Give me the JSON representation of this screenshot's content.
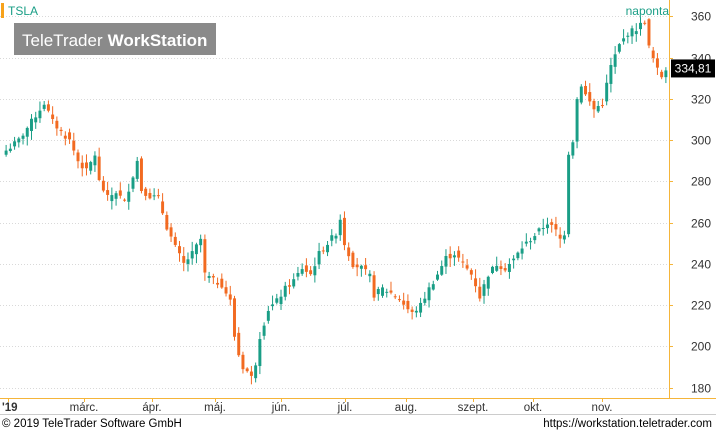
{
  "header": {
    "symbol": "TSLA",
    "interval": "naponta",
    "watermark_light": "TeleTrader",
    "watermark_bold": "WorkStation"
  },
  "footer": {
    "copyright": "© 2019 TeleTrader Software GmbH",
    "url": "https://workstation.teletrader.com"
  },
  "colors": {
    "up": "#1a9e86",
    "down": "#f26a21",
    "accent": "#f7a21b",
    "axis_line": "#f5b53a",
    "grid": "#d9d9d9",
    "last_price_bg": "#000000",
    "last_price_fg": "#ffffff"
  },
  "chart_data": {
    "type": "candlestick",
    "interval": "daily",
    "y_axis": {
      "side": "right",
      "range": [
        175,
        368
      ],
      "ticks": [
        180,
        200,
        220,
        240,
        260,
        280,
        300,
        320,
        340,
        360
      ]
    },
    "x_axis": {
      "tick_labels": [
        "'19",
        "márc.",
        "ápr.",
        "máj.",
        "jún.",
        "júl.",
        "aug.",
        "szept.",
        "okt.",
        "nov."
      ]
    },
    "grid": "horizontal dotted",
    "last_price": 334.81,
    "last_price_label": "334,81",
    "close_path": [
      [
        0,
        295
      ],
      [
        3,
        300
      ],
      [
        7,
        312
      ],
      [
        9,
        318
      ],
      [
        11,
        309
      ],
      [
        13,
        304
      ],
      [
        15,
        300
      ],
      [
        17,
        290
      ],
      [
        19,
        285
      ],
      [
        21,
        293
      ],
      [
        22,
        280
      ],
      [
        24,
        272
      ],
      [
        26,
        275
      ],
      [
        28,
        270
      ],
      [
        30,
        283
      ],
      [
        31,
        290
      ],
      [
        32,
        276
      ],
      [
        34,
        273
      ],
      [
        36,
        272
      ],
      [
        38,
        258
      ],
      [
        40,
        248
      ],
      [
        42,
        240
      ],
      [
        44,
        245
      ],
      [
        46,
        252
      ],
      [
        47,
        235
      ],
      [
        49,
        232
      ],
      [
        51,
        230
      ],
      [
        53,
        222
      ],
      [
        54,
        205
      ],
      [
        55,
        196
      ],
      [
        56,
        190
      ],
      [
        57,
        188
      ],
      [
        58,
        185
      ],
      [
        59,
        192
      ],
      [
        60,
        205
      ],
      [
        62,
        218
      ],
      [
        64,
        222
      ],
      [
        66,
        228
      ],
      [
        68,
        232
      ],
      [
        70,
        238
      ],
      [
        72,
        235
      ],
      [
        74,
        245
      ],
      [
        76,
        250
      ],
      [
        78,
        255
      ],
      [
        79,
        262
      ],
      [
        80,
        250
      ],
      [
        82,
        240
      ],
      [
        84,
        238
      ],
      [
        86,
        234
      ],
      [
        87,
        225
      ],
      [
        89,
        228
      ],
      [
        91,
        226
      ],
      [
        93,
        223
      ],
      [
        95,
        218
      ],
      [
        96,
        216
      ],
      [
        98,
        220
      ],
      [
        100,
        228
      ],
      [
        102,
        235
      ],
      [
        104,
        243
      ],
      [
        106,
        245
      ],
      [
        108,
        240
      ],
      [
        110,
        235
      ],
      [
        111,
        230
      ],
      [
        112,
        224
      ],
      [
        114,
        235
      ],
      [
        116,
        240
      ],
      [
        118,
        238
      ],
      [
        120,
        242
      ],
      [
        122,
        248
      ],
      [
        124,
        252
      ],
      [
        126,
        256
      ],
      [
        128,
        260
      ],
      [
        130,
        256
      ],
      [
        131,
        252
      ],
      [
        132,
        255
      ],
      [
        133,
        294
      ],
      [
        134,
        300
      ],
      [
        135,
        320
      ],
      [
        136,
        327
      ],
      [
        137,
        322
      ],
      [
        139,
        315
      ],
      [
        141,
        318
      ],
      [
        143,
        336
      ],
      [
        145,
        346
      ],
      [
        147,
        352
      ],
      [
        149,
        354
      ],
      [
        151,
        358
      ],
      [
        152,
        345
      ],
      [
        154,
        334
      ],
      [
        155,
        331
      ],
      [
        156,
        334.81
      ]
    ]
  }
}
